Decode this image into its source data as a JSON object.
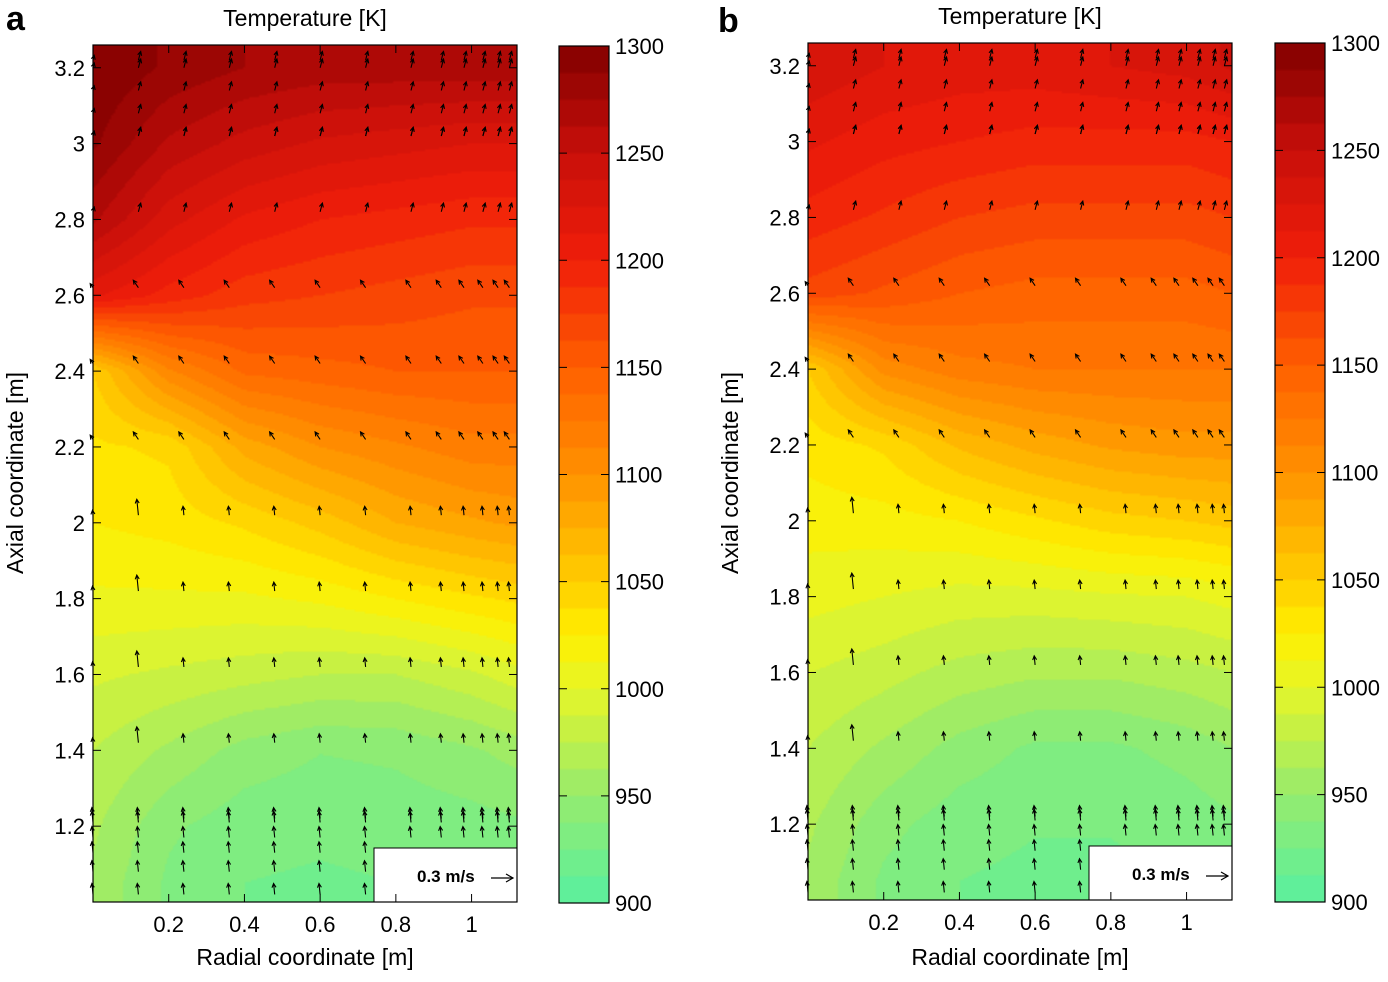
{
  "chart_data": [
    {
      "type": "heatmap",
      "panel_label": "a",
      "title": "Temperature [K]",
      "xlabel": "Radial coordinate [m]",
      "ylabel": "Axial coordinate [m]",
      "xlim": [
        0.0,
        1.12
      ],
      "ylim": [
        1.0,
        3.26
      ],
      "x_ticks": [
        0.2,
        0.4,
        0.6,
        0.8,
        1
      ],
      "y_ticks": [
        1.2,
        1.4,
        1.6,
        1.8,
        2,
        2.2,
        2.4,
        2.6,
        2.8,
        3,
        3.2
      ],
      "colorbar": {
        "min": 900,
        "max": 1300,
        "ticks": [
          900,
          950,
          1000,
          1050,
          1100,
          1150,
          1200,
          1250,
          1300
        ]
      },
      "vector_legend": "0.3 m/s",
      "field": {
        "y": [
          1.05,
          1.2,
          1.4,
          1.6,
          1.8,
          2.0,
          2.2,
          2.4,
          2.6,
          2.8,
          3.0,
          3.2
        ],
        "x": [
          0.0,
          0.2,
          0.4,
          0.6,
          0.8,
          1.0,
          1.12
        ],
        "T": [
          [
            960,
            935,
            925,
            923,
            925,
            925,
            925
          ],
          [
            965,
            940,
            930,
            928,
            930,
            932,
            935
          ],
          [
            975,
            960,
            945,
            938,
            940,
            948,
            955
          ],
          [
            990,
            985,
            980,
            975,
            975,
            985,
            995
          ],
          [
            1010,
            1010,
            1010,
            1015,
            1025,
            1035,
            1040
          ],
          [
            1025,
            1030,
            1040,
            1055,
            1075,
            1085,
            1090
          ],
          [
            1035,
            1040,
            1080,
            1100,
            1110,
            1120,
            1120
          ],
          [
            1050,
            1110,
            1140,
            1145,
            1150,
            1150,
            1150
          ],
          [
            1215,
            1195,
            1180,
            1175,
            1170,
            1165,
            1165
          ],
          [
            1265,
            1230,
            1210,
            1200,
            1195,
            1190,
            1190
          ],
          [
            1290,
            1260,
            1245,
            1235,
            1230,
            1225,
            1225
          ],
          [
            1300,
            1285,
            1275,
            1270,
            1270,
            1270,
            1270
          ]
        ]
      }
    },
    {
      "type": "heatmap",
      "panel_label": "b",
      "title": "Temperature [K]",
      "xlabel": "Radial coordinate [m]",
      "ylabel": "Axial coordinate [m]",
      "xlim": [
        0.0,
        1.12
      ],
      "ylim": [
        1.0,
        3.26
      ],
      "x_ticks": [
        0.2,
        0.4,
        0.6,
        0.8,
        1
      ],
      "y_ticks": [
        1.2,
        1.4,
        1.6,
        1.8,
        2,
        2.2,
        2.4,
        2.6,
        2.8,
        3,
        3.2
      ],
      "colorbar": {
        "min": 900,
        "max": 1300,
        "ticks": [
          900,
          950,
          1000,
          1050,
          1100,
          1150,
          1200,
          1250,
          1300
        ]
      },
      "vector_legend": "0.3 m/s",
      "field": {
        "y": [
          1.05,
          1.2,
          1.4,
          1.6,
          1.8,
          2.0,
          2.2,
          2.4,
          2.6,
          2.8,
          3.0,
          3.2
        ],
        "x": [
          0.0,
          0.2,
          0.4,
          0.6,
          0.8,
          1.0,
          1.12
        ],
        "T": [
          [
            960,
            935,
            925,
            922,
            922,
            925,
            928
          ],
          [
            965,
            942,
            930,
            926,
            926,
            930,
            935
          ],
          [
            975,
            960,
            945,
            935,
            935,
            942,
            950
          ],
          [
            988,
            980,
            970,
            965,
            965,
            970,
            975
          ],
          [
            1005,
            1000,
            995,
            995,
            998,
            1000,
            1005
          ],
          [
            1018,
            1020,
            1025,
            1035,
            1045,
            1050,
            1055
          ],
          [
            1030,
            1040,
            1065,
            1080,
            1090,
            1095,
            1095
          ],
          [
            1050,
            1105,
            1120,
            1125,
            1125,
            1125,
            1125
          ],
          [
            1170,
            1160,
            1150,
            1145,
            1145,
            1145,
            1150
          ],
          [
            1195,
            1185,
            1175,
            1170,
            1170,
            1170,
            1175
          ],
          [
            1215,
            1205,
            1200,
            1195,
            1195,
            1195,
            1200
          ],
          [
            1235,
            1225,
            1220,
            1220,
            1225,
            1230,
            1240
          ]
        ]
      }
    }
  ]
}
